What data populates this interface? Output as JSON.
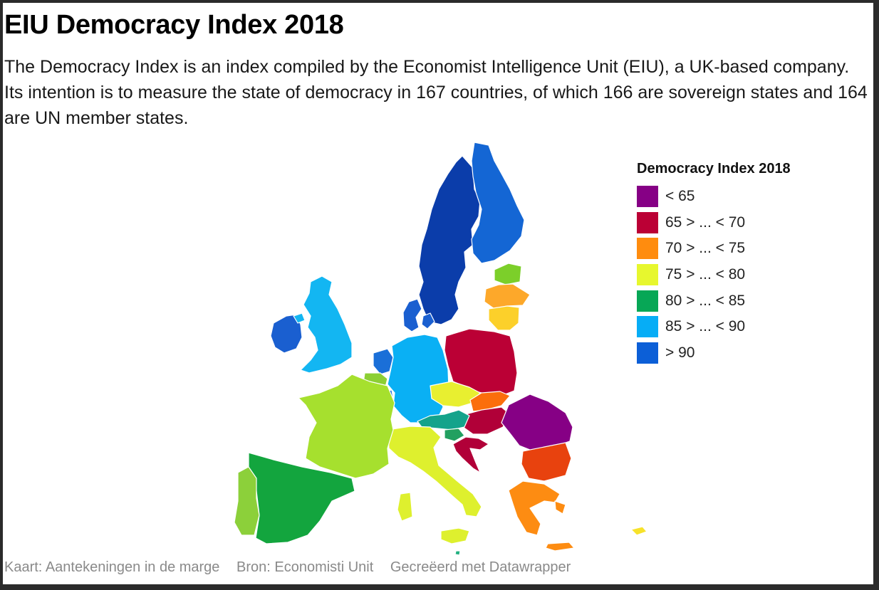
{
  "title": "EIU Democracy Index 2018",
  "description": "The Democracy Index is an index compiled by the Economist Intelligence Unit (EIU), a UK-based company. Its intention is to measure the state of democracy in 167 countries, of which 166 are sovereign states and 164 are UN member states.",
  "legend": {
    "title": "Democracy Index 2018",
    "items": [
      {
        "label": "< 65",
        "color": "#860085"
      },
      {
        "label": "65 > ... < 70",
        "color": "#bb0035"
      },
      {
        "label": "70 > ... < 75",
        "color": "#ff8c0e"
      },
      {
        "label": "75 > ... < 80",
        "color": "#e7f72e"
      },
      {
        "label": "80 > ... < 85",
        "color": "#07a756"
      },
      {
        "label": "85 > ... < 90",
        "color": "#06adf6"
      },
      {
        "label": "> 90",
        "color": "#0c5fd7"
      }
    ]
  },
  "map": {
    "border_color": "#ffffff",
    "regions": [
      {
        "name": "Sweden",
        "color": "#0b3daa"
      },
      {
        "name": "Finland",
        "color": "#1466d4"
      },
      {
        "name": "Denmark",
        "color": "#1a5fd0"
      },
      {
        "name": "Ireland",
        "color": "#1a5fd0"
      },
      {
        "name": "United Kingdom",
        "color": "#13b6f2"
      },
      {
        "name": "Netherlands",
        "color": "#1a6fd8"
      },
      {
        "name": "Belgium",
        "color": "#8ccf34"
      },
      {
        "name": "Luxembourg",
        "color": "#1a6fd8"
      },
      {
        "name": "Germany",
        "color": "#0ab0f4"
      },
      {
        "name": "Poland",
        "color": "#bb0035"
      },
      {
        "name": "Czechia",
        "color": "#e8ef30"
      },
      {
        "name": "Slovakia",
        "color": "#fb6e0c"
      },
      {
        "name": "Hungary",
        "color": "#b10038"
      },
      {
        "name": "Austria",
        "color": "#14a38b"
      },
      {
        "name": "Slovenia",
        "color": "#22a060"
      },
      {
        "name": "Croatia",
        "color": "#b10038"
      },
      {
        "name": "Romania",
        "color": "#860085"
      },
      {
        "name": "Bulgaria",
        "color": "#e8420e"
      },
      {
        "name": "Greece",
        "color": "#fd8c12"
      },
      {
        "name": "Italy",
        "color": "#def02e"
      },
      {
        "name": "France",
        "color": "#a6e02e"
      },
      {
        "name": "Spain",
        "color": "#13a53e"
      },
      {
        "name": "Portugal",
        "color": "#8cd03a"
      },
      {
        "name": "Estonia",
        "color": "#7ccf2a"
      },
      {
        "name": "Latvia",
        "color": "#fda82a"
      },
      {
        "name": "Lithuania",
        "color": "#fcd02a"
      },
      {
        "name": "Cyprus",
        "color": "#f7e22a"
      },
      {
        "name": "Malta",
        "color": "#22b080"
      }
    ]
  },
  "footer": {
    "credit": "Kaart: Aantekeningen in de marge",
    "source": "Bron: Economisti Unit",
    "tool": "Gecreëerd met Datawrapper"
  }
}
